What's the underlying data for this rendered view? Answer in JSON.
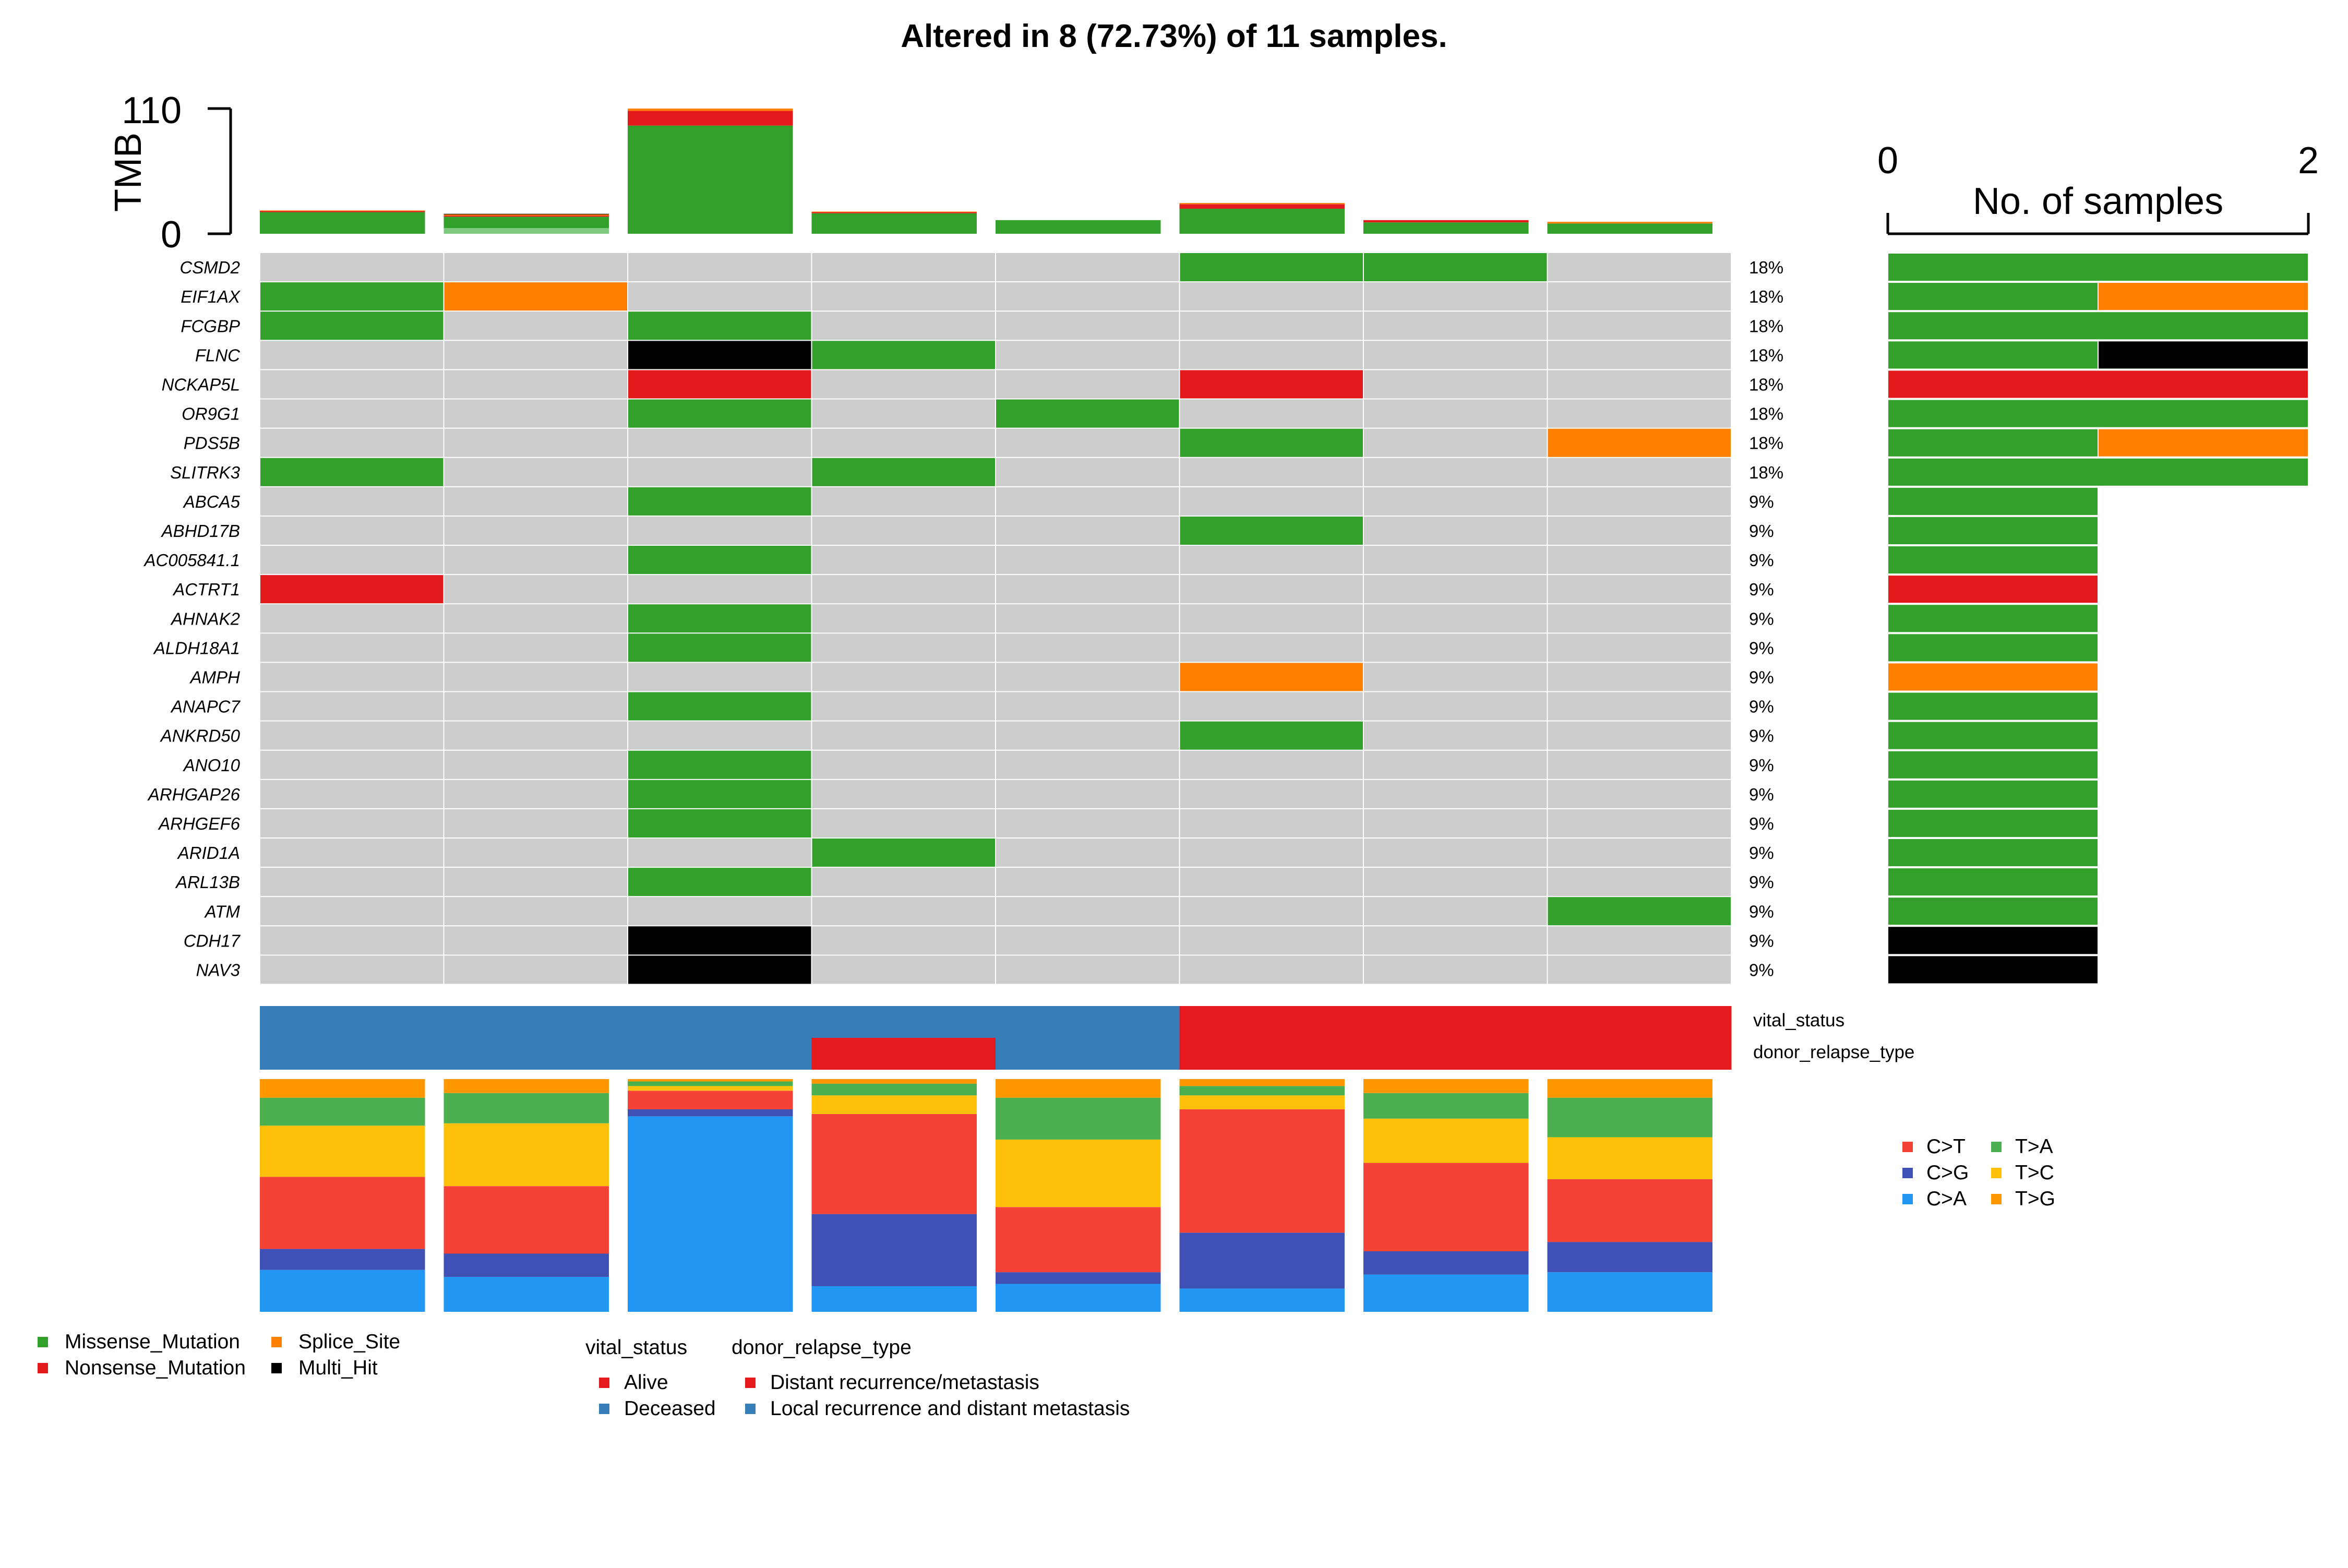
{
  "title": "Altered in 8 (72.73%) of 11 samples.",
  "colors": {
    "Missense_Mutation": "#33a02c",
    "Nonsense_Mutation": "#e31a1c",
    "Splice_Site": "#ff7f00",
    "Multi_Hit": "#000000",
    "empty": "#cccccc",
    "Alive": "#e41a1c",
    "Deceased": "#377eb8",
    "Distant recurrence/metastasis": "#e41a1c",
    "Local recurrence and distant metastasis": "#377eb8",
    "C>T": "#f44336",
    "C>G": "#3f51b5",
    "C>A": "#2196f3",
    "T>A": "#4caf50",
    "T>C": "#ffc107",
    "T>G": "#ff9800"
  },
  "chart_data": {
    "type": "heatmap",
    "samples": 8,
    "tmb": {
      "label": "TMB",
      "tick_labels": [
        "0",
        "110"
      ],
      "ylim": [
        0,
        110
      ],
      "values": [
        {
          "Missense_Mutation": 19,
          "Nonsense_Mutation": 1,
          "Splice_Site": 0.5
        },
        {
          "Missense_Mutation": 10,
          "Nonsense_Mutation": 1,
          "Splice_Site": 1,
          "Multi_Hit": 0.5,
          "light": 5
        },
        {
          "Missense_Mutation": 95,
          "Nonsense_Mutation": 13,
          "Splice_Site": 2
        },
        {
          "Missense_Mutation": 18,
          "Nonsense_Mutation": 1,
          "Splice_Site": 0.5
        },
        {
          "Missense_Mutation": 12
        },
        {
          "Missense_Mutation": 22,
          "Nonsense_Mutation": 4,
          "Splice_Site": 1
        },
        {
          "Missense_Mutation": 10,
          "Nonsense_Mutation": 2
        },
        {
          "Missense_Mutation": 9,
          "Splice_Site": 1.5
        }
      ]
    },
    "genes": [
      {
        "name": "CSMD2",
        "pct": "18%",
        "cells": [
          "",
          "",
          "",
          "",
          "",
          "Missense_Mutation",
          "Missense_Mutation",
          ""
        ]
      },
      {
        "name": "EIF1AX",
        "pct": "18%",
        "cells": [
          "Missense_Mutation",
          "Splice_Site",
          "",
          "",
          "",
          "",
          "",
          ""
        ]
      },
      {
        "name": "FCGBP",
        "pct": "18%",
        "cells": [
          "Missense_Mutation",
          "",
          "Missense_Mutation",
          "",
          "",
          "",
          "",
          ""
        ]
      },
      {
        "name": "FLNC",
        "pct": "18%",
        "cells": [
          "",
          "",
          "Multi_Hit",
          "Missense_Mutation",
          "",
          "",
          "",
          ""
        ]
      },
      {
        "name": "NCKAP5L",
        "pct": "18%",
        "cells": [
          "",
          "",
          "Nonsense_Mutation",
          "",
          "",
          "Nonsense_Mutation",
          "",
          ""
        ]
      },
      {
        "name": "OR9G1",
        "pct": "18%",
        "cells": [
          "",
          "",
          "Missense_Mutation",
          "",
          "Missense_Mutation",
          "",
          "",
          ""
        ]
      },
      {
        "name": "PDS5B",
        "pct": "18%",
        "cells": [
          "",
          "",
          "",
          "",
          "",
          "Missense_Mutation",
          "",
          "Splice_Site"
        ]
      },
      {
        "name": "SLITRK3",
        "pct": "18%",
        "cells": [
          "Missense_Mutation",
          "",
          "",
          "Missense_Mutation",
          "",
          "",
          "",
          ""
        ]
      },
      {
        "name": "ABCA5",
        "pct": "9%",
        "cells": [
          "",
          "",
          "Missense_Mutation",
          "",
          "",
          "",
          "",
          ""
        ]
      },
      {
        "name": "ABHD17B",
        "pct": "9%",
        "cells": [
          "",
          "",
          "",
          "",
          "",
          "Missense_Mutation",
          "",
          ""
        ]
      },
      {
        "name": "AC005841.1",
        "pct": "9%",
        "cells": [
          "",
          "",
          "Missense_Mutation",
          "",
          "",
          "",
          "",
          ""
        ]
      },
      {
        "name": "ACTRT1",
        "pct": "9%",
        "cells": [
          "Nonsense_Mutation",
          "",
          "",
          "",
          "",
          "",
          "",
          ""
        ]
      },
      {
        "name": "AHNAK2",
        "pct": "9%",
        "cells": [
          "",
          "",
          "Missense_Mutation",
          "",
          "",
          "",
          "",
          ""
        ]
      },
      {
        "name": "ALDH18A1",
        "pct": "9%",
        "cells": [
          "",
          "",
          "Missense_Mutation",
          "",
          "",
          "",
          "",
          ""
        ]
      },
      {
        "name": "AMPH",
        "pct": "9%",
        "cells": [
          "",
          "",
          "",
          "",
          "",
          "Splice_Site",
          "",
          ""
        ]
      },
      {
        "name": "ANAPC7",
        "pct": "9%",
        "cells": [
          "",
          "",
          "Missense_Mutation",
          "",
          "",
          "",
          "",
          ""
        ]
      },
      {
        "name": "ANKRD50",
        "pct": "9%",
        "cells": [
          "",
          "",
          "",
          "",
          "",
          "Missense_Mutation",
          "",
          ""
        ]
      },
      {
        "name": "ANO10",
        "pct": "9%",
        "cells": [
          "",
          "",
          "Missense_Mutation",
          "",
          "",
          "",
          "",
          ""
        ]
      },
      {
        "name": "ARHGAP26",
        "pct": "9%",
        "cells": [
          "",
          "",
          "Missense_Mutation",
          "",
          "",
          "",
          "",
          ""
        ]
      },
      {
        "name": "ARHGEF6",
        "pct": "9%",
        "cells": [
          "",
          "",
          "Missense_Mutation",
          "",
          "",
          "",
          "",
          ""
        ]
      },
      {
        "name": "ARID1A",
        "pct": "9%",
        "cells": [
          "",
          "",
          "",
          "Missense_Mutation",
          "",
          "",
          "",
          ""
        ]
      },
      {
        "name": "ARL13B",
        "pct": "9%",
        "cells": [
          "",
          "",
          "Missense_Mutation",
          "",
          "",
          "",
          "",
          ""
        ]
      },
      {
        "name": "ATM",
        "pct": "9%",
        "cells": [
          "",
          "",
          "",
          "",
          "",
          "",
          "",
          "Missense_Mutation"
        ]
      },
      {
        "name": "CDH17",
        "pct": "9%",
        "cells": [
          "",
          "",
          "Multi_Hit",
          "",
          "",
          "",
          "",
          ""
        ]
      },
      {
        "name": "NAV3",
        "pct": "9%",
        "cells": [
          "",
          "",
          "Multi_Hit",
          "",
          "",
          "",
          "",
          ""
        ]
      }
    ],
    "gene_bars": {
      "xlabel": "No. of samples",
      "tick_labels": [
        "0",
        "2"
      ],
      "xlim": [
        0,
        2
      ],
      "rows": [
        [
          {
            "type": "Missense_Mutation",
            "n": 2
          }
        ],
        [
          {
            "type": "Missense_Mutation",
            "n": 1
          },
          {
            "type": "Splice_Site",
            "n": 1
          }
        ],
        [
          {
            "type": "Missense_Mutation",
            "n": 2
          }
        ],
        [
          {
            "type": "Missense_Mutation",
            "n": 1
          },
          {
            "type": "Multi_Hit",
            "n": 1
          }
        ],
        [
          {
            "type": "Nonsense_Mutation",
            "n": 2
          }
        ],
        [
          {
            "type": "Missense_Mutation",
            "n": 2
          }
        ],
        [
          {
            "type": "Missense_Mutation",
            "n": 1
          },
          {
            "type": "Splice_Site",
            "n": 1
          }
        ],
        [
          {
            "type": "Missense_Mutation",
            "n": 2
          }
        ],
        [
          {
            "type": "Missense_Mutation",
            "n": 1
          }
        ],
        [
          {
            "type": "Missense_Mutation",
            "n": 1
          }
        ],
        [
          {
            "type": "Missense_Mutation",
            "n": 1
          }
        ],
        [
          {
            "type": "Nonsense_Mutation",
            "n": 1
          }
        ],
        [
          {
            "type": "Missense_Mutation",
            "n": 1
          }
        ],
        [
          {
            "type": "Missense_Mutation",
            "n": 1
          }
        ],
        [
          {
            "type": "Splice_Site",
            "n": 1
          }
        ],
        [
          {
            "type": "Missense_Mutation",
            "n": 1
          }
        ],
        [
          {
            "type": "Missense_Mutation",
            "n": 1
          }
        ],
        [
          {
            "type": "Missense_Mutation",
            "n": 1
          }
        ],
        [
          {
            "type": "Missense_Mutation",
            "n": 1
          }
        ],
        [
          {
            "type": "Missense_Mutation",
            "n": 1
          }
        ],
        [
          {
            "type": "Missense_Mutation",
            "n": 1
          }
        ],
        [
          {
            "type": "Missense_Mutation",
            "n": 1
          }
        ],
        [
          {
            "type": "Missense_Mutation",
            "n": 1
          }
        ],
        [
          {
            "type": "Multi_Hit",
            "n": 1
          }
        ],
        [
          {
            "type": "Multi_Hit",
            "n": 1
          }
        ]
      ]
    },
    "annotations": {
      "tracks": [
        "vital_status",
        "donor_relapse_type"
      ],
      "vital_status": [
        "Deceased",
        "Deceased",
        "Deceased",
        "Deceased",
        "Deceased",
        "Alive",
        "Alive",
        "Alive"
      ],
      "donor_relapse_type": [
        "Local recurrence and distant metastasis",
        "Local recurrence and distant metastasis",
        "Local recurrence and distant metastasis",
        "Distant recurrence/metastasis",
        "Local recurrence and distant metastasis",
        "Distant recurrence/metastasis",
        "Distant recurrence/metastasis",
        "Distant recurrence/metastasis"
      ]
    },
    "titv_order": [
      "C>A",
      "C>G",
      "C>T",
      "T>C",
      "T>A",
      "T>G"
    ],
    "titv": [
      {
        "C>A": 18,
        "C>G": 9,
        "C>T": 31,
        "T>C": 22,
        "T>A": 12,
        "T>G": 8
      },
      {
        "C>A": 15,
        "C>G": 10,
        "C>T": 29,
        "T>C": 27,
        "T>A": 13,
        "T>G": 6
      },
      {
        "C>A": 84,
        "C>G": 3,
        "C>T": 8,
        "T>C": 2,
        "T>A": 2,
        "T>G": 1
      },
      {
        "C>A": 11,
        "C>G": 31,
        "C>T": 43,
        "T>C": 8,
        "T>A": 5,
        "T>G": 2
      },
      {
        "C>A": 12,
        "C>G": 5,
        "C>T": 28,
        "T>C": 29,
        "T>A": 18,
        "T>G": 8
      },
      {
        "C>A": 10,
        "C>G": 24,
        "C>T": 53,
        "T>C": 6,
        "T>A": 4,
        "T>G": 3
      },
      {
        "C>A": 16,
        "C>G": 10,
        "C>T": 38,
        "T>C": 19,
        "T>A": 11,
        "T>G": 6
      },
      {
        "C>A": 17,
        "C>G": 13,
        "C>T": 27,
        "T>C": 18,
        "T>A": 17,
        "T>G": 8
      }
    ],
    "legends": {
      "variant_classification": [
        "Missense_Mutation",
        "Splice_Site",
        "Nonsense_Mutation",
        "Multi_Hit"
      ],
      "titv": [
        "C>T",
        "T>A",
        "C>G",
        "T>C",
        "C>A",
        "T>G"
      ],
      "vital_status": {
        "title": "vital_status",
        "items": [
          "Alive",
          "Deceased"
        ]
      },
      "donor_relapse_type": {
        "title": "donor_relapse_type",
        "items": [
          "Distant recurrence/metastasis",
          "Local recurrence and distant metastasis"
        ]
      }
    }
  }
}
